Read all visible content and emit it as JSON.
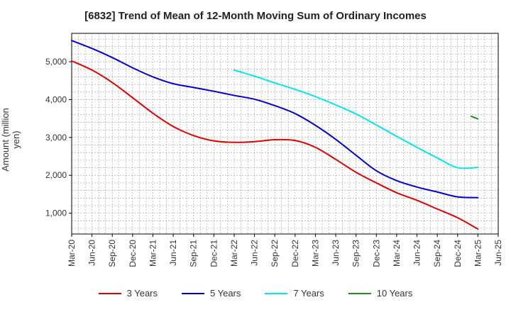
{
  "chart_data": {
    "type": "line",
    "title": "[6832]  Trend of Mean of 12-Month Moving Sum of Ordinary Incomes",
    "xlabel": "",
    "ylabel": "Amount (million yen)",
    "ylim": [
      450,
      5750
    ],
    "yticks": [
      1000,
      2000,
      3000,
      4000,
      5000
    ],
    "ytick_labels": [
      "1,000",
      "2,000",
      "3,000",
      "4,000",
      "5,000"
    ],
    "x_start": "2020-03",
    "x_end": "2025-06",
    "xticks": [
      "Mar-20",
      "Jun-20",
      "Sep-20",
      "Dec-20",
      "Mar-21",
      "Jun-21",
      "Sep-21",
      "Dec-21",
      "Mar-22",
      "Jun-22",
      "Sep-22",
      "Dec-22",
      "Mar-23",
      "Jun-23",
      "Sep-23",
      "Dec-23",
      "Mar-24",
      "Jun-24",
      "Sep-24",
      "Dec-24",
      "Mar-25",
      "Jun-25"
    ],
    "grid": true,
    "legend_position": "bottom",
    "series": [
      {
        "name": "3 Years",
        "color": "#e00000",
        "points": [
          [
            "2020-03",
            5020
          ],
          [
            "2020-06",
            4780
          ],
          [
            "2020-09",
            4450
          ],
          [
            "2020-12",
            4050
          ],
          [
            "2021-03",
            3640
          ],
          [
            "2021-06",
            3290
          ],
          [
            "2021-09",
            3050
          ],
          [
            "2021-12",
            2910
          ],
          [
            "2022-03",
            2870
          ],
          [
            "2022-06",
            2890
          ],
          [
            "2022-09",
            2940
          ],
          [
            "2022-12",
            2920
          ],
          [
            "2023-03",
            2740
          ],
          [
            "2023-06",
            2420
          ],
          [
            "2023-09",
            2080
          ],
          [
            "2023-12",
            1800
          ],
          [
            "2024-03",
            1540
          ],
          [
            "2024-06",
            1340
          ],
          [
            "2024-09",
            1110
          ],
          [
            "2024-12",
            880
          ],
          [
            "2025-03",
            580
          ]
        ]
      },
      {
        "name": "5 Years",
        "color": "#0000cc",
        "points": [
          [
            "2020-03",
            5560
          ],
          [
            "2020-06",
            5350
          ],
          [
            "2020-09",
            5110
          ],
          [
            "2020-12",
            4840
          ],
          [
            "2021-03",
            4600
          ],
          [
            "2021-06",
            4420
          ],
          [
            "2021-09",
            4320
          ],
          [
            "2021-12",
            4220
          ],
          [
            "2022-03",
            4110
          ],
          [
            "2022-06",
            4010
          ],
          [
            "2022-09",
            3840
          ],
          [
            "2022-12",
            3630
          ],
          [
            "2023-03",
            3320
          ],
          [
            "2023-06",
            2950
          ],
          [
            "2023-09",
            2530
          ],
          [
            "2023-12",
            2120
          ],
          [
            "2024-03",
            1860
          ],
          [
            "2024-06",
            1690
          ],
          [
            "2024-09",
            1560
          ],
          [
            "2024-12",
            1430
          ],
          [
            "2025-03",
            1410
          ]
        ]
      },
      {
        "name": "7 Years",
        "color": "#00e5ee",
        "points": [
          [
            "2022-03",
            4780
          ],
          [
            "2022-06",
            4620
          ],
          [
            "2022-09",
            4440
          ],
          [
            "2022-12",
            4270
          ],
          [
            "2023-03",
            4080
          ],
          [
            "2023-06",
            3860
          ],
          [
            "2023-09",
            3620
          ],
          [
            "2023-12",
            3330
          ],
          [
            "2024-03",
            3030
          ],
          [
            "2024-06",
            2740
          ],
          [
            "2024-09",
            2460
          ],
          [
            "2024-12",
            2200
          ],
          [
            "2025-03",
            2210
          ]
        ]
      },
      {
        "name": "10 Years",
        "color": "#228b22",
        "points": [
          [
            "2025-02",
            3560
          ],
          [
            "2025-03",
            3490
          ]
        ]
      }
    ]
  }
}
